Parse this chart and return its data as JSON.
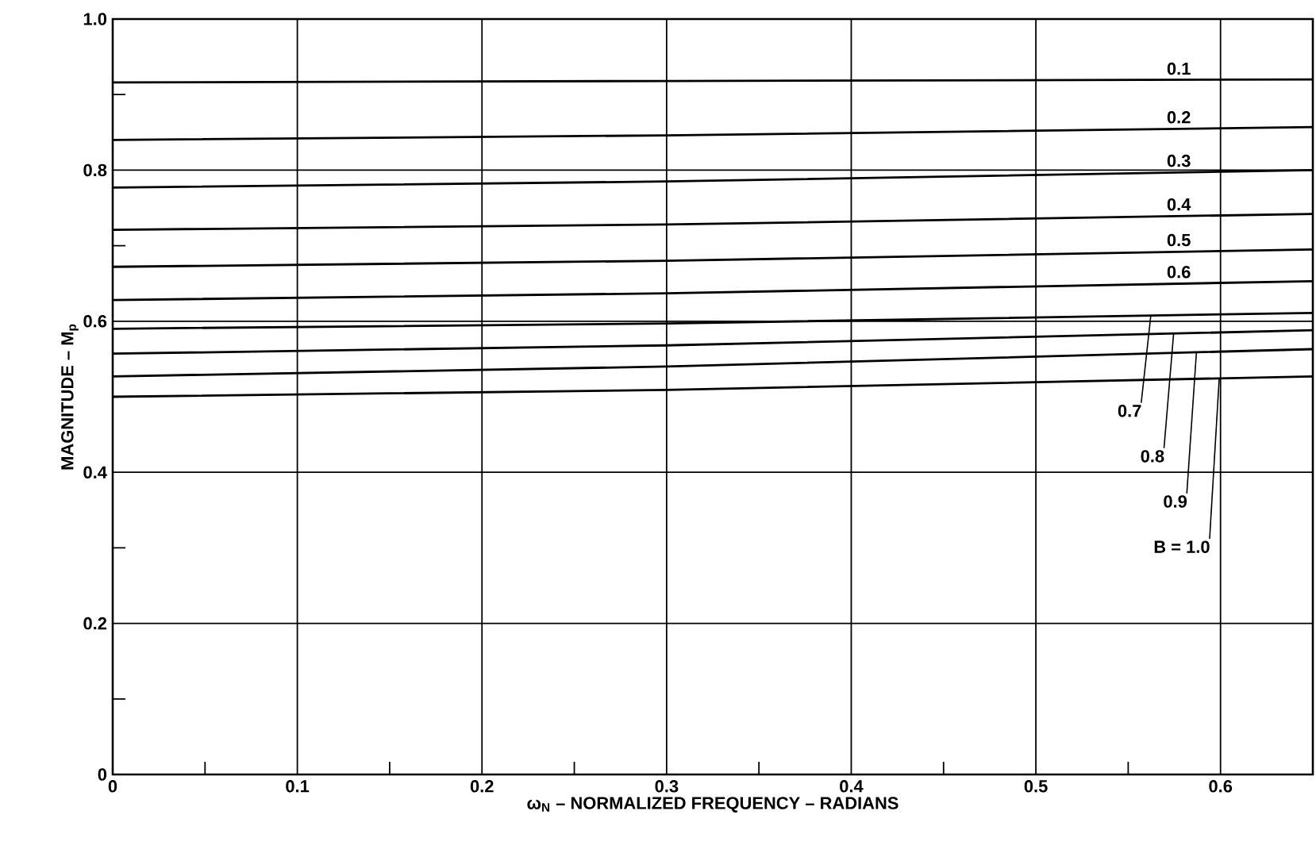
{
  "chart_data": {
    "type": "line",
    "xlabel": "ω$_{N}$ – NORMALIZED FREQUENCY – RADIANS",
    "ylabel": "MAGNITUDE – M$_{p}$",
    "x": [
      0,
      0.3,
      0.65
    ],
    "series": [
      {
        "name": "0.1",
        "color": "#000000",
        "values": [
          0.916,
          0.918,
          0.92
        ]
      },
      {
        "name": "0.2",
        "color": "#000000",
        "values": [
          0.84,
          0.846,
          0.857
        ]
      },
      {
        "name": "0.3",
        "color": "#000000",
        "values": [
          0.777,
          0.785,
          0.8
        ]
      },
      {
        "name": "0.4",
        "color": "#000000",
        "values": [
          0.721,
          0.728,
          0.742
        ]
      },
      {
        "name": "0.5",
        "color": "#000000",
        "values": [
          0.672,
          0.68,
          0.695
        ]
      },
      {
        "name": "0.6",
        "color": "#000000",
        "values": [
          0.628,
          0.637,
          0.653
        ]
      },
      {
        "name": "0.7",
        "color": "#000000",
        "values": [
          0.59,
          0.597,
          0.611
        ]
      },
      {
        "name": "0.8",
        "color": "#000000",
        "values": [
          0.557,
          0.568,
          0.588
        ]
      },
      {
        "name": "0.9",
        "color": "#000000",
        "values": [
          0.527,
          0.54,
          0.563
        ]
      },
      {
        "name": "B = 1.0",
        "color": "#000000",
        "values": [
          0.5,
          0.509,
          0.527
        ]
      }
    ],
    "xlim": [
      0,
      0.65
    ],
    "ylim": [
      0,
      1.0
    ],
    "xticks": [
      0,
      {
        "value": 0.05,
        "label": null
      },
      0.1,
      {
        "value": 0.15,
        "label": null
      },
      0.2,
      {
        "value": 0.25,
        "label": null
      },
      0.3,
      {
        "value": 0.35,
        "label": null
      },
      0.4,
      {
        "value": 0.45,
        "label": null
      },
      0.5,
      {
        "value": 0.55,
        "label": null
      },
      0.6
    ],
    "yticks": [
      0,
      {
        "value": 0.1,
        "label": null
      },
      0.2,
      {
        "value": 0.3,
        "label": null
      },
      0.4,
      {
        "value": 0.5,
        "label": null
      },
      0.6,
      {
        "value": 0.7,
        "label": null
      },
      0.8,
      {
        "value": 0.9,
        "label": null
      },
      {
        "value": 1.0,
        "label": "1.0"
      }
    ],
    "grid": true,
    "legend": false,
    "marker": "none",
    "line_style": "solid"
  }
}
